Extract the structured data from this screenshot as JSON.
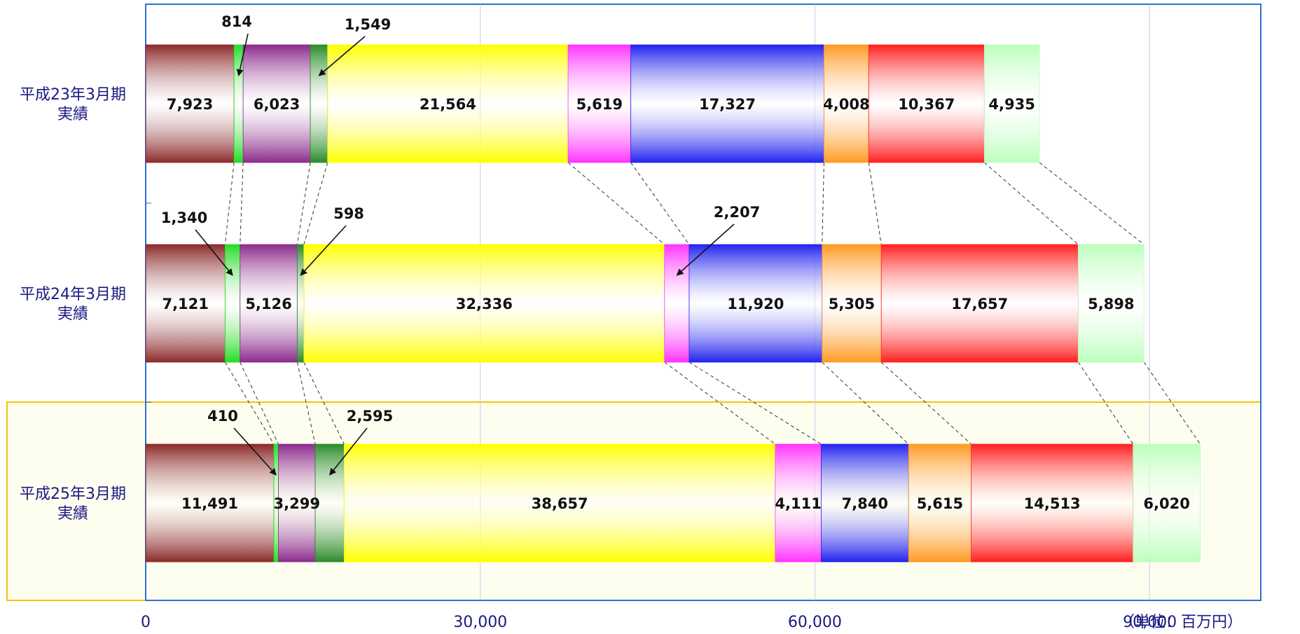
{
  "chart_data": {
    "type": "bar",
    "orientation": "horizontal",
    "stacked": true,
    "categories": [
      "平成23年3月期\n実績",
      "平成24年3月期\n実績",
      "平成25年3月期\n実績"
    ],
    "xlim": [
      0,
      100000
    ],
    "xticks": [
      "0",
      "30,000",
      "60,000",
      "90,000"
    ],
    "unit_label": "（単位：百万円）",
    "grid": true,
    "highlight_category": 2,
    "series": [
      {
        "values": [
          7923,
          7121,
          11491
        ],
        "color": "#8b2a2a"
      },
      {
        "values": [
          814,
          1340,
          410
        ],
        "color": "#22dd22"
      },
      {
        "values": [
          6023,
          5126,
          3299
        ],
        "color": "#8b2a8b"
      },
      {
        "values": [
          1549,
          598,
          2595
        ],
        "color": "#2a8b2a"
      },
      {
        "values": [
          21564,
          32336,
          38657
        ],
        "color": "#ffff00"
      },
      {
        "values": [
          5619,
          2207,
          4111
        ],
        "color": "#ff33ff"
      },
      {
        "values": [
          17327,
          11920,
          7840
        ],
        "color": "#2222ee"
      },
      {
        "values": [
          4008,
          5305,
          5615
        ],
        "color": "#ff9922"
      },
      {
        "values": [
          10367,
          17657,
          14513
        ],
        "color": "#ff1f1f"
      },
      {
        "values": [
          4935,
          5898,
          6020
        ],
        "color": "#bbffbb"
      }
    ],
    "value_labels": [
      [
        "7,923",
        "7,121",
        "11,491"
      ],
      [
        "814",
        "1,340",
        "410"
      ],
      [
        "6,023",
        "5,126",
        "3,299"
      ],
      [
        "1,549",
        "598",
        "2,595"
      ],
      [
        "21,564",
        "32,336",
        "38,657"
      ],
      [
        "5,619",
        "2,207",
        "4,111"
      ],
      [
        "17,327",
        "11,920",
        "7,840"
      ],
      [
        "4,008",
        "5,305",
        "5,615"
      ],
      [
        "10,367",
        "17,657",
        "14,513"
      ],
      [
        "4,935",
        "5,898",
        "6,020"
      ]
    ],
    "callouts": [
      [
        1,
        0
      ],
      [
        3,
        0
      ],
      [
        1,
        1
      ],
      [
        3,
        1
      ],
      [
        5,
        1
      ],
      [
        1,
        2
      ],
      [
        3,
        2
      ]
    ]
  }
}
